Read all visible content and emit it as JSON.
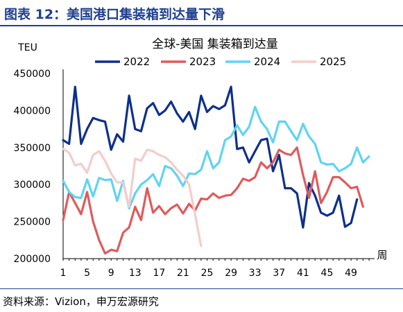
{
  "figure": {
    "title": "图表 12：美国港口集装箱到达量下滑",
    "source": "资料来源：Vizion，申万宏源研究",
    "colors": {
      "title": "#1f3f8f",
      "rule": "#1f3f8f"
    }
  },
  "chart_data": {
    "type": "line",
    "title": "全球-美国 集装箱到达量",
    "ylabel": "TEU",
    "xlabel": "周",
    "ylim": [
      200000,
      450000
    ],
    "yticks": [
      200000,
      250000,
      300000,
      350000,
      400000,
      450000
    ],
    "xticks": [
      1,
      5,
      9,
      13,
      17,
      21,
      25,
      29,
      33,
      37,
      41,
      45,
      49
    ],
    "grid": false,
    "legend_position": "top",
    "series": [
      {
        "name": "2022",
        "color": "#0d2f8c",
        "values": [
          360000,
          355000,
          432000,
          355000,
          375000,
          390000,
          387000,
          385000,
          347000,
          368000,
          358000,
          420000,
          375000,
          372000,
          403000,
          410000,
          394000,
          400000,
          412000,
          396000,
          385000,
          398000,
          375000,
          420000,
          398000,
          406000,
          402000,
          407000,
          432000,
          348000,
          350000,
          330000,
          345000,
          360000,
          362000,
          318000,
          340000,
          295000,
          295000,
          288000,
          242000,
          302000,
          285000,
          262000,
          258000,
          262000,
          285000,
          243000,
          248000,
          280000
        ]
      },
      {
        "name": "2023",
        "color": "#e05a5a",
        "values": [
          252000,
          290000,
          275000,
          260000,
          290000,
          250000,
          225000,
          207000,
          212000,
          210000,
          235000,
          242000,
          270000,
          252000,
          295000,
          262000,
          271000,
          260000,
          268000,
          273000,
          261000,
          274000,
          265000,
          281000,
          280000,
          288000,
          282000,
          285000,
          286000,
          295000,
          308000,
          305000,
          310000,
          330000,
          322000,
          330000,
          347000,
          342000,
          340000,
          350000,
          313000,
          282000,
          318000,
          275000,
          290000,
          310000,
          310000,
          303000,
          295000,
          297000,
          270000
        ]
      },
      {
        "name": "2024",
        "color": "#5fd3f3",
        "values": [
          305000,
          290000,
          283000,
          282000,
          307000,
          284000,
          309000,
          306000,
          307000,
          278000,
          305000,
          268000,
          288000,
          300000,
          306000,
          314000,
          298000,
          325000,
          322000,
          312000,
          298000,
          315000,
          314000,
          320000,
          345000,
          322000,
          330000,
          360000,
          365000,
          380000,
          367000,
          378000,
          405000,
          385000,
          375000,
          357000,
          385000,
          385000,
          372000,
          360000,
          382000,
          365000,
          355000,
          330000,
          327000,
          328000,
          318000,
          322000,
          328000,
          350000,
          330000,
          338000
        ]
      },
      {
        "name": "2025",
        "color": "#f4cccc",
        "values": [
          348000,
          343000,
          326000,
          328000,
          316000,
          340000,
          345000,
          332000,
          315000,
          303000,
          303000,
          270000,
          335000,
          332000,
          347000,
          345000,
          340000,
          337000,
          330000,
          320000,
          312000,
          300000,
          260000,
          217000
        ]
      }
    ]
  }
}
